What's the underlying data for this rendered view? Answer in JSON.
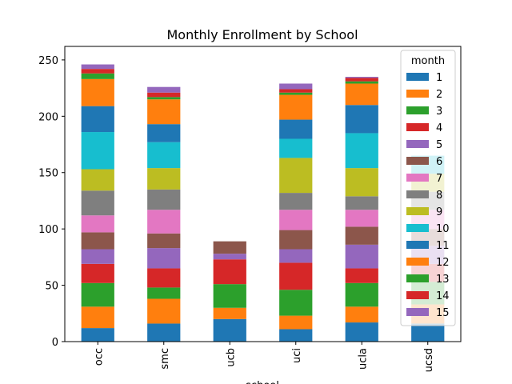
{
  "chart_data": {
    "type": "bar",
    "stacked": true,
    "title": "Monthly Enrollment by School",
    "xlabel": "school",
    "ylabel": "",
    "ylim": [
      0,
      262
    ],
    "yticks": [
      0,
      50,
      100,
      150,
      200,
      250
    ],
    "categories": [
      "occ",
      "smc",
      "ucb",
      "uci",
      "ucla",
      "ucsd"
    ],
    "legend": {
      "title": "month",
      "placement": "top-right"
    },
    "series": [
      {
        "name": "1",
        "color": "#1f77b4",
        "values": [
          12,
          16,
          20,
          11,
          17,
          16
        ]
      },
      {
        "name": "2",
        "color": "#ff7f0e",
        "values": [
          19,
          22,
          10,
          12,
          14,
          17
        ]
      },
      {
        "name": "3",
        "color": "#2ca02c",
        "values": [
          21,
          10,
          21,
          23,
          21,
          20
        ]
      },
      {
        "name": "4",
        "color": "#d62728",
        "values": [
          17,
          17,
          22,
          24,
          13,
          16
        ]
      },
      {
        "name": "5",
        "color": "#9467bd",
        "values": [
          13,
          18,
          5,
          12,
          21,
          16
        ]
      },
      {
        "name": "6",
        "color": "#8c564b",
        "values": [
          15,
          13,
          11,
          17,
          16,
          15
        ]
      },
      {
        "name": "7",
        "color": "#e377c2",
        "values": [
          15,
          21,
          0,
          18,
          15,
          17
        ]
      },
      {
        "name": "8",
        "color": "#7f7f7f",
        "values": [
          22,
          18,
          0,
          15,
          12,
          16
        ]
      },
      {
        "name": "9",
        "color": "#bcbd22",
        "values": [
          19,
          19,
          0,
          31,
          25,
          16
        ]
      },
      {
        "name": "10",
        "color": "#17becf",
        "values": [
          33,
          23,
          0,
          17,
          31,
          16
        ]
      },
      {
        "name": "11",
        "color": "#1f77b4",
        "values": [
          23,
          16,
          0,
          17,
          25,
          0
        ]
      },
      {
        "name": "12",
        "color": "#ff7f0e",
        "values": [
          24,
          22,
          0,
          22,
          19,
          0
        ]
      },
      {
        "name": "13",
        "color": "#2ca02c",
        "values": [
          5,
          2,
          0,
          2,
          2,
          0
        ]
      },
      {
        "name": "14",
        "color": "#d62728",
        "values": [
          4,
          4,
          0,
          3,
          3,
          0
        ]
      },
      {
        "name": "15",
        "color": "#9467bd",
        "values": [
          4,
          5,
          0,
          5,
          1,
          0
        ]
      }
    ]
  }
}
